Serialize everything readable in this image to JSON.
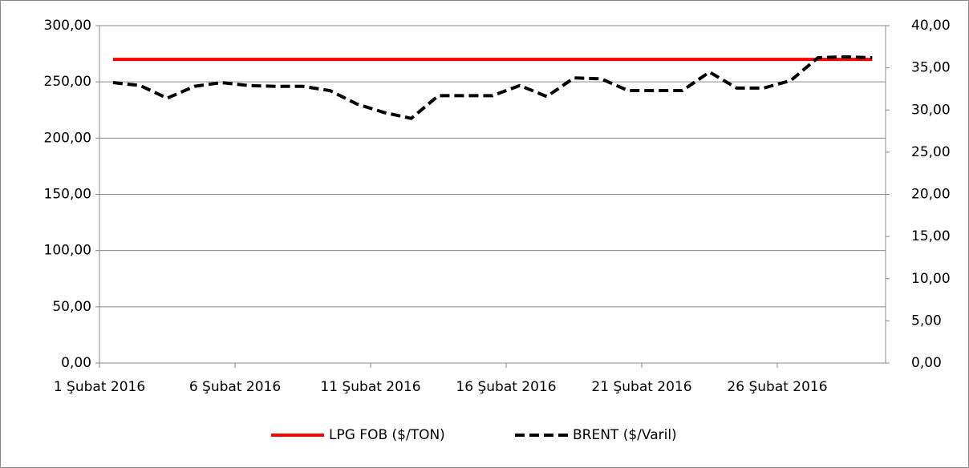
{
  "chart_data": {
    "type": "line",
    "categories": [
      "1 Şubat 2016",
      null,
      null,
      null,
      null,
      "6 Şubat 2016",
      null,
      null,
      null,
      null,
      "11 Şubat 2016",
      null,
      null,
      null,
      null,
      "16 Şubat 2016",
      null,
      null,
      null,
      null,
      "21 Şubat 2016",
      null,
      null,
      null,
      null,
      "26 Şubat 2016",
      null,
      null,
      null
    ],
    "series": [
      {
        "name": "LPG FOB ($/TON)",
        "color": "#ff0000",
        "values": [
          270,
          270,
          270,
          270,
          270,
          270,
          270,
          270,
          270,
          270,
          270,
          270,
          270,
          270,
          270,
          270,
          270,
          270,
          270,
          270,
          270,
          270,
          270,
          270,
          270,
          270,
          270,
          270,
          270
        ]
      },
      {
        "name": "BRENT ($/Varil)",
        "color": "#000000",
        "axis": "y2",
        "dashed": true,
        "values": [
          33.25,
          32.9,
          31.4,
          32.8,
          33.25,
          32.9,
          32.8,
          32.8,
          32.3,
          30.7,
          29.7,
          29.0,
          31.7,
          31.7,
          31.7,
          32.9,
          31.6,
          33.8,
          33.7,
          32.3,
          32.3,
          32.3,
          34.5,
          32.6,
          32.6,
          33.5,
          36.2,
          36.3,
          36.2
        ]
      }
    ],
    "ylim": [
      0,
      300
    ],
    "yticks": [
      {
        "value": 0,
        "label": "0,00"
      },
      {
        "value": 50,
        "label": "50,00"
      },
      {
        "value": 100,
        "label": "100,00"
      },
      {
        "value": 150,
        "label": "150,00"
      },
      {
        "value": 200,
        "label": "200,00"
      },
      {
        "value": 250,
        "label": "250,00"
      },
      {
        "value": 300,
        "label": "300,00"
      }
    ],
    "y2lim": [
      0,
      40
    ],
    "y2ticks": [
      {
        "value": 0,
        "label": "0,00"
      },
      {
        "value": 5,
        "label": "5,00"
      },
      {
        "value": 10,
        "label": "10,00"
      },
      {
        "value": 15,
        "label": "15,00"
      },
      {
        "value": 20,
        "label": "20,00"
      },
      {
        "value": 25,
        "label": "25,00"
      },
      {
        "value": 30,
        "label": "30,00"
      },
      {
        "value": 35,
        "label": "35,00"
      },
      {
        "value": 40,
        "label": "40,00"
      }
    ],
    "grid": true,
    "legend": "bottom"
  }
}
